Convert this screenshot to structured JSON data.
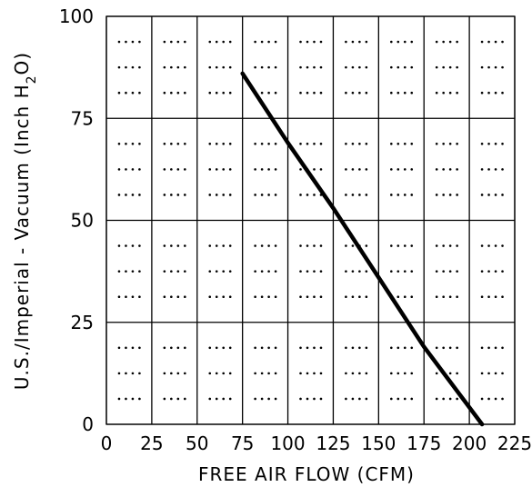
{
  "chart_data": {
    "type": "line",
    "title": "",
    "xlabel": "FREE AIR FLOW (CFM)",
    "ylabel_parts": {
      "main": "U.S./Imperial - Vacuum (Inch H",
      "subscript": "2",
      "end": "O)"
    },
    "xlim": [
      0,
      225
    ],
    "ylim": [
      0,
      100
    ],
    "x_ticks": [
      0,
      25,
      50,
      75,
      100,
      125,
      150,
      175,
      200,
      225
    ],
    "y_ticks": [
      0,
      25,
      50,
      75,
      100
    ],
    "grid": true,
    "minor_dot_grid": true,
    "series": [
      {
        "x": [
          75,
          100,
          125,
          150,
          175,
          207
        ],
        "y": [
          86,
          69,
          53,
          36,
          19,
          0
        ]
      }
    ],
    "colors": {
      "line": "#000000",
      "grid": "#000000",
      "background": "#ffffff"
    }
  }
}
